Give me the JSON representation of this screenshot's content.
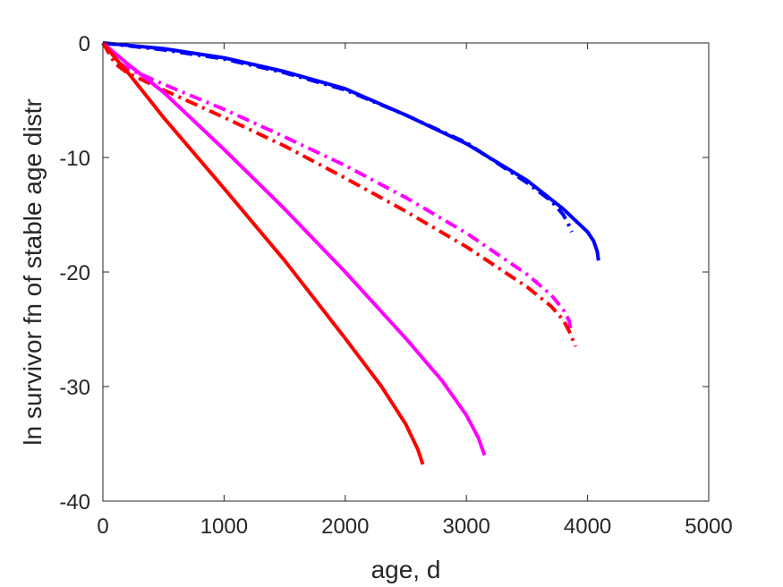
{
  "chart_data": {
    "type": "line",
    "title": "",
    "xlabel": "age, d",
    "ylabel": "ln survivor fn of stable age distr",
    "xlim": [
      0,
      5000
    ],
    "ylim": [
      -40,
      0
    ],
    "xticks": [
      0,
      1000,
      2000,
      3000,
      4000,
      5000
    ],
    "yticks": [
      0,
      -10,
      -20,
      -30,
      -40
    ],
    "xtick_labels": [
      "0",
      "1000",
      "2000",
      "3000",
      "4000",
      "5000"
    ],
    "ytick_labels": [
      "0",
      "-10",
      "-20",
      "-30",
      "-40"
    ],
    "grid": false,
    "legend": "none",
    "series": [
      {
        "color": "#0000ff",
        "style": "solid",
        "x": [
          0,
          500,
          1000,
          1500,
          2000,
          2500,
          3000,
          3500,
          3800,
          4000,
          4050,
          4080,
          4090
        ],
        "y": [
          0,
          -0.5,
          -1.3,
          -2.5,
          -4.0,
          -6.3,
          -8.8,
          -12.0,
          -14.5,
          -16.5,
          -17.3,
          -18.2,
          -19.0
        ]
      },
      {
        "color": "#0000ff",
        "style": "dashdot",
        "x": [
          0,
          500,
          1000,
          1500,
          2000,
          2500,
          3000,
          3500,
          3700,
          3800,
          3850,
          3870
        ],
        "y": [
          0,
          -0.6,
          -1.4,
          -2.6,
          -4.1,
          -6.3,
          -8.7,
          -12.2,
          -13.8,
          -15.0,
          -16.0,
          -16.5
        ]
      },
      {
        "color": "#ff00ff",
        "style": "dashdot",
        "x": [
          0,
          100,
          200,
          500,
          1000,
          1500,
          2000,
          2500,
          3000,
          3500,
          3700,
          3800,
          3850,
          3860
        ],
        "y": [
          0,
          -1.5,
          -2.2,
          -3.6,
          -5.8,
          -8.2,
          -10.7,
          -13.5,
          -16.6,
          -20.2,
          -22.0,
          -23.3,
          -24.3,
          -25.0
        ]
      },
      {
        "color": "#ff0000",
        "style": "dashdot",
        "x": [
          0,
          100,
          200,
          500,
          1000,
          1500,
          2000,
          2500,
          3000,
          3500,
          3700,
          3800,
          3850,
          3900
        ],
        "y": [
          0,
          -1.8,
          -2.6,
          -4.1,
          -6.5,
          -9.0,
          -11.8,
          -14.7,
          -17.8,
          -21.3,
          -23.0,
          -24.2,
          -25.2,
          -26.5
        ]
      },
      {
        "color": "#ff00ff",
        "style": "solid",
        "x": [
          0,
          100,
          200,
          500,
          1000,
          1500,
          2000,
          2500,
          2800,
          3000,
          3100,
          3150
        ],
        "y": [
          0,
          -0.9,
          -1.8,
          -4.3,
          -9.3,
          -14.5,
          -20.0,
          -25.8,
          -29.5,
          -32.5,
          -34.5,
          -36.0
        ]
      },
      {
        "color": "#ff0000",
        "style": "solid",
        "x": [
          0,
          100,
          200,
          500,
          1000,
          1500,
          2000,
          2300,
          2500,
          2600,
          2640
        ],
        "y": [
          0,
          -1.3,
          -2.5,
          -6.5,
          -12.7,
          -19.0,
          -25.8,
          -30.0,
          -33.3,
          -35.5,
          -36.8
        ]
      }
    ]
  }
}
